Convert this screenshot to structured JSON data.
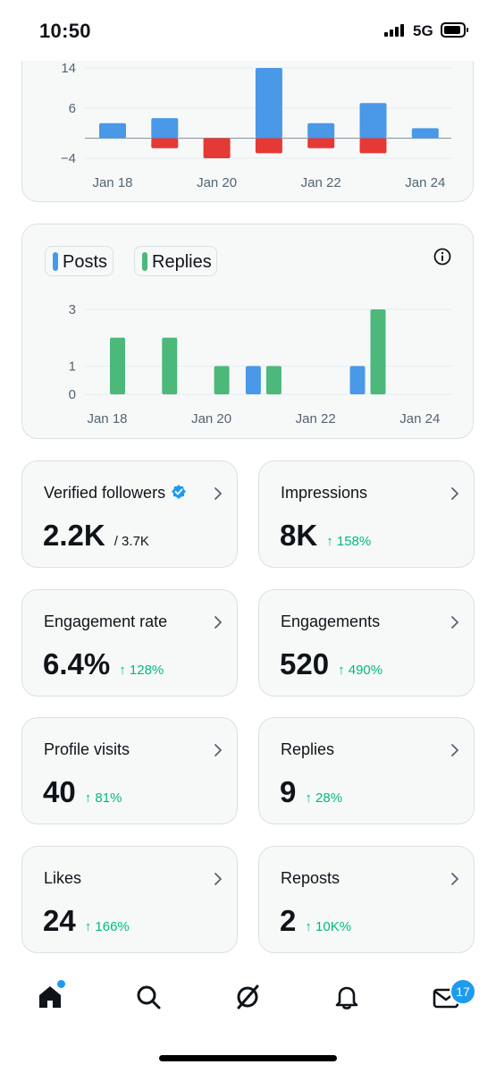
{
  "status_bar": {
    "time": "10:50",
    "network": "5G"
  },
  "colors": {
    "posts": "#4a98e8",
    "replies": "#4cb87a",
    "negative": "#e53935",
    "green_delta": "#00ba7c",
    "accent": "#1d9bf0"
  },
  "chart_data": [
    {
      "type": "bar",
      "x_ticks": [
        "Jan 18",
        "Jan 20",
        "Jan 22",
        "Jan 24"
      ],
      "y_ticks": [
        "14",
        "6",
        "-4"
      ],
      "ylim": [
        -4,
        14
      ],
      "categories": [
        "Jan 18",
        "Jan 19",
        "Jan 20",
        "Jan 21",
        "Jan 22",
        "Jan 23",
        "Jan 24"
      ],
      "series": [
        {
          "color": "#4a98e8",
          "values": [
            3,
            4,
            0,
            14,
            3,
            7,
            2
          ]
        },
        {
          "color": "#e53935",
          "values": [
            0,
            -2,
            -4,
            -3,
            -2,
            -3,
            0
          ]
        }
      ]
    },
    {
      "type": "bar",
      "x_ticks": [
        "Jan 18",
        "Jan 20",
        "Jan 22",
        "Jan 24"
      ],
      "y_ticks": [
        "3",
        "1",
        "0"
      ],
      "ylim": [
        0,
        3
      ],
      "legend": [
        "Posts",
        "Replies"
      ],
      "categories": [
        "Jan 18",
        "Jan 19",
        "Jan 20",
        "Jan 21",
        "Jan 22",
        "Jan 23",
        "Jan 24"
      ],
      "series": [
        {
          "name": "Posts",
          "color": "#4a98e8",
          "values": [
            0,
            0,
            0,
            1,
            0,
            1,
            0
          ]
        },
        {
          "name": "Replies",
          "color": "#4cb87a",
          "values": [
            2,
            2,
            1,
            1,
            0,
            3,
            0
          ]
        }
      ]
    }
  ],
  "metrics": [
    {
      "title": "Verified followers",
      "value": "2.2K",
      "sub": "/ 3.7K",
      "delta": ""
    },
    {
      "title": "Impressions",
      "value": "8K",
      "sub": "",
      "delta": "↑ 158%"
    },
    {
      "title": "Engagement rate",
      "value": "6.4%",
      "sub": "",
      "delta": "↑ 128%"
    },
    {
      "title": "Engagements",
      "value": "520",
      "sub": "",
      "delta": "↑ 490%"
    },
    {
      "title": "Profile visits",
      "value": "40",
      "sub": "",
      "delta": "↑ 81%"
    },
    {
      "title": "Replies",
      "value": "9",
      "sub": "",
      "delta": "↑ 28%"
    },
    {
      "title": "Likes",
      "value": "24",
      "sub": "",
      "delta": "↑ 166%"
    },
    {
      "title": "Reposts",
      "value": "2",
      "sub": "",
      "delta": "↑ 10K%"
    }
  ],
  "nav": {
    "items": [
      "home-icon",
      "search-icon",
      "grok-icon",
      "bell-icon",
      "mail-icon"
    ],
    "messages_badge": "17"
  }
}
